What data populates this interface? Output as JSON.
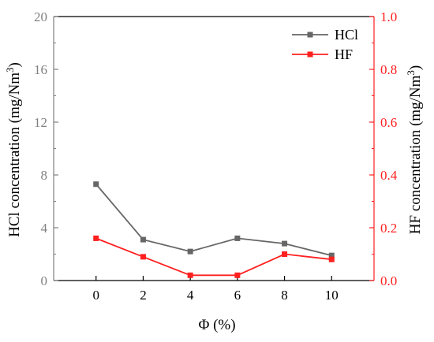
{
  "chart_data": {
    "type": "line",
    "x": [
      0,
      2,
      4,
      6,
      8,
      10
    ],
    "xlabel": "Φ (%)",
    "xlim": [
      -1.8,
      11.8
    ],
    "xticks": [
      "0",
      "2",
      "4",
      "6",
      "8",
      "10"
    ],
    "ylabel_left": {
      "main": "HCl concentration (mg/Nm",
      "sup": "3",
      "close": ")"
    },
    "ylabel_right": {
      "main": "HF concentration (mg/Nm",
      "sup": "3",
      "close": ")"
    },
    "ylim_left": [
      0,
      20
    ],
    "ylim_right": [
      0,
      1.0
    ],
    "yticks_left": [
      "0",
      "4",
      "8",
      "12",
      "16",
      "20"
    ],
    "yticks_right": [
      "0.0",
      "0.2",
      "0.4",
      "0.6",
      "0.8",
      "1.0"
    ],
    "series": [
      {
        "name": "HCl",
        "axis": "left",
        "color": "#666666",
        "marker": "square",
        "values": [
          7.3,
          3.1,
          2.2,
          3.2,
          2.8,
          1.9
        ]
      },
      {
        "name": "HF",
        "axis": "right",
        "color": "#ff2020",
        "marker": "square",
        "values": [
          0.16,
          0.09,
          0.02,
          0.02,
          0.1,
          0.08
        ]
      }
    ],
    "legend": {
      "position": "top-right"
    },
    "axis_colors": {
      "left": "#808080",
      "right": "#ff2020",
      "frame": "#000000"
    },
    "grid": false
  }
}
